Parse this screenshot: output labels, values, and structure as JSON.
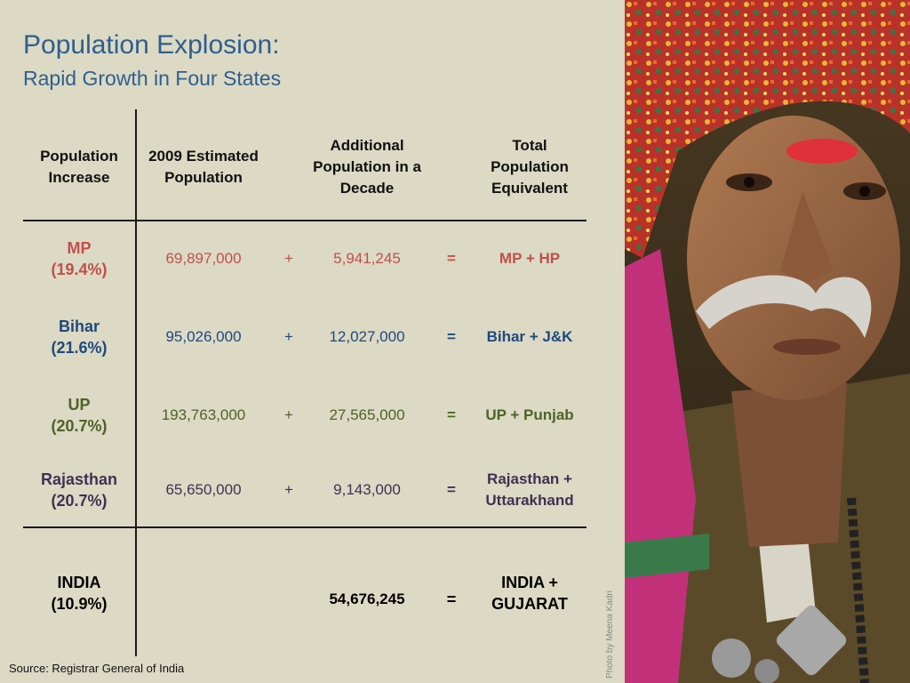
{
  "title": "Population Explosion:",
  "subtitle": "Rapid Growth in Four States",
  "table": {
    "headers": [
      "Population\nIncrease",
      "2009 Estimated\nPopulation",
      "Additional\nPopulation in a\nDecade",
      "Total\nPopulation\nEquivalent"
    ],
    "rows": [
      {
        "state": "MP\n(19.4%)",
        "population": "69,897,000",
        "plus": "+",
        "additional": "5,941,245",
        "equals": "=",
        "equivalent": "MP + HP",
        "color": "#c0504d"
      },
      {
        "state": "Bihar\n(21.6%)",
        "population": "95,026,000",
        "plus": "+",
        "additional": "12,027,000",
        "equals": "=",
        "equivalent": "Bihar + J&K",
        "color": "#1f497d"
      },
      {
        "state": "UP\n(20.7%)",
        "population": "193,763,000",
        "plus": "+",
        "additional": "27,565,000",
        "equals": "=",
        "equivalent": "UP + Punjab",
        "color": "#4f6228"
      },
      {
        "state": "Rajasthan\n(20.7%)",
        "population": "65,650,000",
        "plus": "+",
        "additional": "9,143,000",
        "equals": "=",
        "equivalent": "Rajasthan +\nUttarakhand",
        "color": "#403152"
      }
    ],
    "total": {
      "state": "INDIA\n(10.9%)",
      "additional": "54,676,245",
      "equals": "=",
      "equivalent": "INDIA +\nGUJARAT",
      "color": "#000000"
    }
  },
  "source": "Source: Registrar General of India",
  "photo_credit": "Photo by Meena Kadri"
}
